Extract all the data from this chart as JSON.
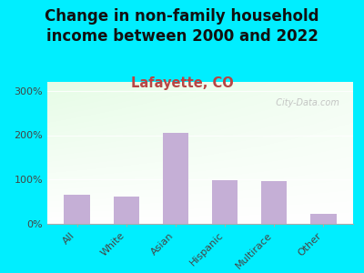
{
  "title": "Change in non-family household\nincome between 2000 and 2022",
  "subtitle": "Lafayette, CO",
  "categories": [
    "All",
    "White",
    "Asian",
    "Hispanic",
    "Multirace",
    "Other"
  ],
  "values": [
    65,
    62,
    205,
    98,
    97,
    22
  ],
  "bar_color": "#c5afd6",
  "title_fontsize": 12,
  "subtitle_fontsize": 10.5,
  "subtitle_color": "#b84444",
  "background_outer": "#00eeff",
  "ylim": [
    0,
    320
  ],
  "yticks": [
    0,
    100,
    200,
    300
  ],
  "watermark": "  City-Data.com",
  "tick_fontsize": 8
}
